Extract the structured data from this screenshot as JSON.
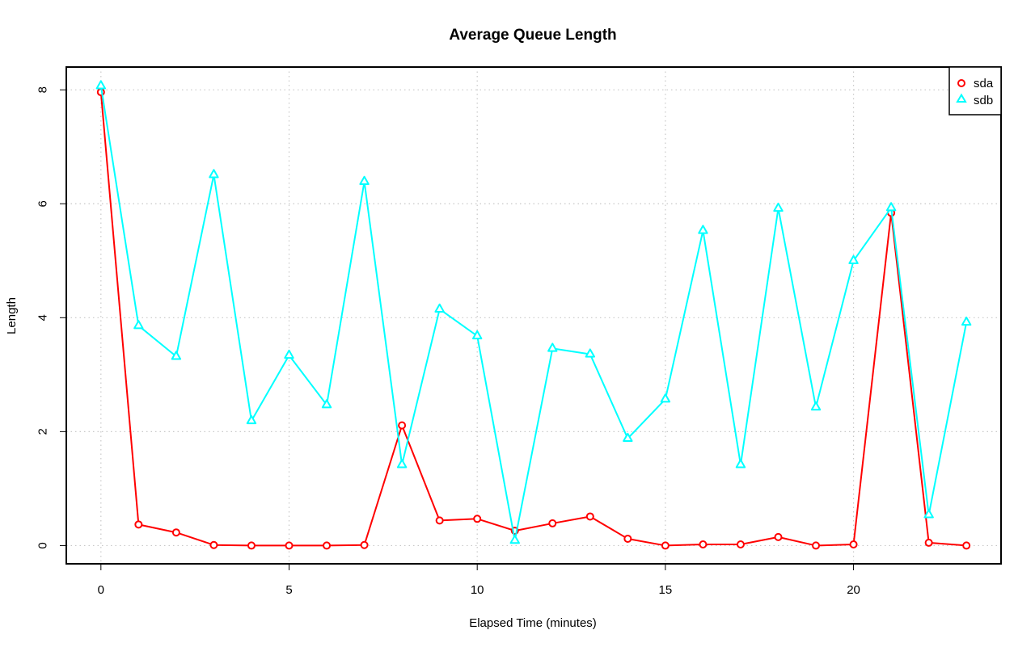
{
  "chart_data": {
    "type": "line",
    "title": "Average Queue Length",
    "xlabel": "Elapsed Time (minutes)",
    "ylabel": "Length",
    "xlim": [
      -0.92,
      23.92
    ],
    "ylim": [
      -0.32,
      8.4
    ],
    "x_ticks": [
      0,
      5,
      10,
      15,
      20
    ],
    "y_ticks": [
      0,
      2,
      4,
      6,
      8
    ],
    "grid": true,
    "legend_position": "top-right",
    "x": [
      0,
      1,
      2,
      3,
      4,
      5,
      6,
      7,
      8,
      9,
      10,
      11,
      12,
      13,
      14,
      15,
      16,
      17,
      18,
      19,
      20,
      21,
      22,
      23
    ],
    "series": [
      {
        "name": "sda",
        "color": "#ff0000",
        "marker": "circle",
        "values": [
          7.96,
          0.37,
          0.23,
          0.01,
          0.0,
          0.0,
          0.0,
          0.01,
          2.11,
          0.44,
          0.47,
          0.26,
          0.39,
          0.51,
          0.12,
          0.0,
          0.02,
          0.02,
          0.15,
          0.0,
          0.02,
          5.84,
          0.05,
          0.0
        ]
      },
      {
        "name": "sdb",
        "color": "#00ffff",
        "marker": "triangle",
        "values": [
          8.07,
          3.86,
          3.32,
          6.51,
          2.19,
          3.34,
          2.47,
          6.39,
          1.42,
          4.15,
          3.68,
          0.09,
          3.46,
          3.36,
          1.88,
          2.57,
          5.53,
          1.42,
          5.92,
          2.43,
          5.0,
          5.93,
          0.54,
          3.92
        ]
      }
    ]
  }
}
